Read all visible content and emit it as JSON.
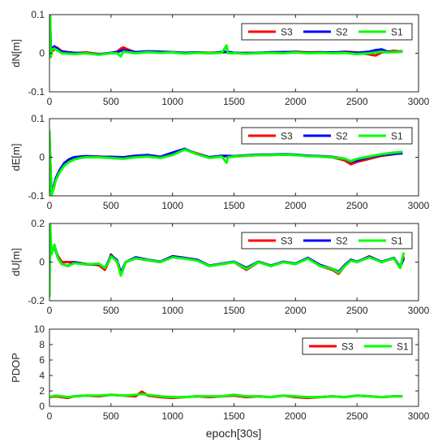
{
  "figure": {
    "xlabel": "epoch[30s]"
  },
  "colors": {
    "S3": "#ff0000",
    "S2": "#0000ff",
    "S1": "#00ff00"
  },
  "chart_data": [
    {
      "id": "dN",
      "type": "line",
      "ylabel": "dN[m]",
      "xlim": [
        0,
        3000
      ],
      "ylim": [
        -0.1,
        0.1
      ],
      "xticks": [
        0,
        500,
        1000,
        1500,
        2000,
        2500,
        3000
      ],
      "yticks": [
        -0.1,
        0,
        0.1
      ],
      "ytick_labels": [
        "-0.1",
        "0",
        "0.1"
      ],
      "legend_position": "top-right",
      "legend": [
        "S3",
        "S2",
        "S1"
      ],
      "series": [
        {
          "name": "S3",
          "color": "#ff0000",
          "x": [
            0,
            5,
            10,
            20,
            40,
            60,
            100,
            200,
            300,
            400,
            500,
            550,
            580,
            600,
            650,
            700,
            800,
            900,
            1000,
            1100,
            1200,
            1300,
            1400,
            1440,
            1500,
            1600,
            1700,
            1800,
            1900,
            2000,
            2100,
            2200,
            2300,
            2400,
            2500,
            2600,
            2650,
            2700,
            2750,
            2800,
            2870
          ],
          "y": [
            0.0,
            0.08,
            0.02,
            0.005,
            0.01,
            0.015,
            0.005,
            0.0,
            0.002,
            -0.002,
            0.0,
            0.004,
            0.012,
            0.015,
            0.008,
            0.002,
            0.004,
            0.003,
            0.002,
            0.0,
            0.002,
            0.001,
            0.002,
            0.003,
            0.0,
            0.001,
            0.0,
            0.003,
            0.002,
            0.004,
            0.002,
            0.003,
            0.001,
            0.004,
            0.002,
            -0.003,
            -0.006,
            0.002,
            0.004,
            0.006,
            0.004
          ]
        },
        {
          "name": "S2",
          "color": "#0000ff",
          "x": [
            0,
            5,
            10,
            20,
            40,
            60,
            100,
            200,
            300,
            400,
            500,
            550,
            580,
            600,
            650,
            700,
            800,
            900,
            1000,
            1100,
            1200,
            1300,
            1400,
            1440,
            1500,
            1600,
            1700,
            1800,
            1900,
            2000,
            2100,
            2200,
            2300,
            2400,
            2500,
            2600,
            2650,
            2700,
            2750,
            2800,
            2870
          ],
          "y": [
            0.0,
            0.085,
            0.022,
            0.008,
            0.018,
            0.012,
            0.004,
            0.001,
            0.0,
            -0.003,
            0.001,
            0.003,
            0.006,
            0.008,
            0.006,
            0.003,
            0.005,
            0.004,
            0.003,
            0.001,
            0.002,
            0.0,
            0.003,
            0.004,
            0.001,
            0.0,
            0.001,
            0.002,
            0.003,
            0.003,
            0.001,
            0.002,
            0.002,
            0.003,
            0.001,
            0.004,
            0.008,
            0.01,
            0.004,
            0.003,
            0.005
          ]
        },
        {
          "name": "S1",
          "color": "#00ff00",
          "x": [
            0,
            5,
            10,
            20,
            40,
            60,
            100,
            200,
            300,
            400,
            500,
            550,
            580,
            600,
            650,
            700,
            800,
            900,
            1000,
            1100,
            1200,
            1300,
            1400,
            1440,
            1450,
            1500,
            1600,
            1700,
            1800,
            1900,
            2000,
            2100,
            2200,
            2300,
            2400,
            2500,
            2600,
            2650,
            2700,
            2750,
            2800,
            2870
          ],
          "y": [
            0.0,
            0.1,
            -0.01,
            0.01,
            0.012,
            0.008,
            0.0,
            -0.002,
            0.0,
            -0.004,
            0.0,
            0.0,
            -0.008,
            0.004,
            0.002,
            0.0,
            0.003,
            0.001,
            0.002,
            -0.001,
            0.001,
            0.0,
            0.001,
            0.02,
            0.0,
            0.0,
            -0.001,
            0.0,
            0.001,
            0.0,
            0.002,
            0.0,
            0.001,
            0.0,
            0.001,
            -0.002,
            0.0,
            0.002,
            0.004,
            0.002,
            0.003,
            0.004
          ]
        }
      ]
    },
    {
      "id": "dE",
      "type": "line",
      "ylabel": "dE[m]",
      "xlim": [
        0,
        3000
      ],
      "ylim": [
        -0.1,
        0.1
      ],
      "xticks": [
        0,
        500,
        1000,
        1500,
        2000,
        2500,
        3000
      ],
      "yticks": [
        -0.1,
        0,
        0.1
      ],
      "ytick_labels": [
        "-0.1",
        "0",
        "0.1"
      ],
      "legend_position": "top-right",
      "legend": [
        "S3",
        "S2",
        "S1"
      ],
      "series": [
        {
          "name": "S3",
          "color": "#ff0000",
          "x": [
            0,
            5,
            15,
            30,
            50,
            80,
            120,
            160,
            200,
            250,
            300,
            400,
            500,
            600,
            700,
            800,
            900,
            1000,
            1100,
            1200,
            1300,
            1400,
            1500,
            1600,
            1700,
            1800,
            1900,
            2000,
            2100,
            2200,
            2300,
            2400,
            2450,
            2500,
            2600,
            2700,
            2800,
            2870
          ],
          "y": [
            0.05,
            0.0,
            -0.09,
            -0.085,
            -0.06,
            -0.04,
            -0.02,
            -0.01,
            -0.005,
            0.0,
            0.002,
            0.002,
            0.0,
            -0.002,
            0.003,
            0.005,
            0.0,
            0.01,
            0.02,
            0.01,
            0.0,
            0.003,
            0.002,
            0.004,
            0.006,
            0.006,
            0.007,
            0.006,
            0.004,
            0.002,
            0.0,
            -0.008,
            -0.018,
            -0.012,
            -0.004,
            0.004,
            0.008,
            0.012
          ]
        },
        {
          "name": "S2",
          "color": "#0000ff",
          "x": [
            0,
            5,
            15,
            30,
            50,
            80,
            120,
            160,
            200,
            250,
            300,
            400,
            500,
            600,
            700,
            800,
            900,
            1000,
            1100,
            1200,
            1300,
            1400,
            1500,
            1600,
            1700,
            1800,
            1900,
            2000,
            2100,
            2200,
            2300,
            2400,
            2450,
            2500,
            2600,
            2700,
            2800,
            2870
          ],
          "y": [
            0.05,
            0.0,
            -0.09,
            -0.08,
            -0.055,
            -0.035,
            -0.015,
            -0.005,
            0.0,
            0.002,
            0.003,
            0.001,
            0.001,
            0.0,
            0.004,
            0.006,
            0.001,
            0.012,
            0.022,
            0.008,
            0.0,
            0.004,
            0.003,
            0.005,
            0.007,
            0.007,
            0.008,
            0.007,
            0.004,
            0.003,
            0.001,
            -0.004,
            -0.012,
            -0.008,
            0.0,
            0.006,
            0.009,
            0.01
          ]
        },
        {
          "name": "S1",
          "color": "#00ff00",
          "x": [
            0,
            5,
            15,
            30,
            50,
            80,
            120,
            160,
            200,
            250,
            300,
            400,
            500,
            600,
            700,
            800,
            900,
            1000,
            1100,
            1200,
            1300,
            1400,
            1440,
            1450,
            1500,
            1600,
            1700,
            1800,
            1900,
            2000,
            2100,
            2200,
            2300,
            2400,
            2450,
            2500,
            2600,
            2700,
            2800,
            2870
          ],
          "y": [
            0.07,
            0.0,
            -0.1,
            -0.085,
            -0.06,
            -0.04,
            -0.022,
            -0.012,
            -0.006,
            -0.002,
            0.0,
            0.0,
            -0.002,
            -0.004,
            0.0,
            0.002,
            -0.002,
            0.006,
            0.02,
            0.008,
            -0.002,
            0.002,
            -0.014,
            0.0,
            0.002,
            0.004,
            0.006,
            0.006,
            0.007,
            0.006,
            0.003,
            0.002,
            0.0,
            -0.004,
            -0.01,
            -0.004,
            0.002,
            0.008,
            0.012,
            0.014
          ]
        }
      ]
    },
    {
      "id": "dU",
      "type": "line",
      "ylabel": "dU[m]",
      "xlim": [
        0,
        3000
      ],
      "ylim": [
        -0.2,
        0.2
      ],
      "xticks": [
        0,
        500,
        1000,
        1500,
        2000,
        2500,
        3000
      ],
      "yticks": [
        -0.2,
        0,
        0.2
      ],
      "ytick_labels": [
        "-0.2",
        "0",
        "0.2"
      ],
      "legend_position": "top-right",
      "legend": [
        "S3",
        "S2",
        "S1"
      ],
      "series": [
        {
          "name": "S3",
          "color": "#ff0000",
          "x": [
            0,
            5,
            15,
            40,
            70,
            100,
            150,
            200,
            300,
            400,
            450,
            480,
            500,
            550,
            580,
            620,
            700,
            800,
            900,
            1000,
            1100,
            1200,
            1300,
            1400,
            1500,
            1600,
            1700,
            1800,
            1900,
            2000,
            2100,
            2200,
            2300,
            2350,
            2400,
            2450,
            2500,
            2600,
            2700,
            2800,
            2850,
            2880
          ],
          "y": [
            0.0,
            0.08,
            0.05,
            0.08,
            0.03,
            0.0,
            0.0,
            0.0,
            -0.01,
            -0.015,
            -0.04,
            0.0,
            0.04,
            0.0,
            -0.06,
            0.0,
            0.02,
            0.01,
            0.0,
            0.03,
            0.02,
            0.01,
            -0.02,
            -0.01,
            0.0,
            -0.04,
            0.0,
            -0.02,
            0.0,
            -0.01,
            0.02,
            -0.02,
            -0.04,
            -0.06,
            -0.02,
            0.01,
            0.0,
            0.03,
            0.0,
            0.02,
            -0.03,
            0.03
          ]
        },
        {
          "name": "S2",
          "color": "#0000ff",
          "x": [
            0,
            5,
            15,
            40,
            70,
            100,
            150,
            200,
            300,
            400,
            450,
            480,
            500,
            550,
            580,
            620,
            700,
            800,
            900,
            1000,
            1100,
            1200,
            1300,
            1400,
            1500,
            1600,
            1700,
            1800,
            1900,
            2000,
            2100,
            2200,
            2300,
            2350,
            2400,
            2450,
            2500,
            2600,
            2700,
            2800,
            2850,
            2880
          ],
          "y": [
            0.0,
            0.085,
            0.055,
            0.08,
            0.02,
            -0.01,
            -0.02,
            0.0,
            -0.012,
            -0.01,
            -0.03,
            0.005,
            0.035,
            0.01,
            -0.055,
            0.0,
            0.025,
            0.012,
            0.002,
            0.03,
            0.022,
            0.012,
            -0.018,
            -0.008,
            0.002,
            -0.03,
            0.002,
            -0.018,
            0.002,
            -0.008,
            0.022,
            -0.015,
            -0.035,
            -0.05,
            -0.015,
            0.012,
            0.002,
            0.028,
            0.002,
            0.022,
            -0.025,
            0.02
          ]
        },
        {
          "name": "S1",
          "color": "#00ff00",
          "x": [
            0,
            5,
            15,
            40,
            70,
            100,
            150,
            200,
            300,
            400,
            450,
            480,
            500,
            550,
            580,
            620,
            700,
            800,
            900,
            1000,
            1100,
            1200,
            1300,
            1400,
            1500,
            1600,
            1700,
            1800,
            1900,
            2000,
            2100,
            2200,
            2300,
            2350,
            2400,
            2450,
            2500,
            2600,
            2700,
            2800,
            2850,
            2880
          ],
          "y": [
            -0.18,
            0.2,
            0.04,
            0.09,
            0.02,
            -0.01,
            -0.02,
            -0.005,
            -0.012,
            -0.008,
            -0.03,
            0.0,
            0.03,
            0.005,
            -0.07,
            0.0,
            0.02,
            0.01,
            0.0,
            0.025,
            0.018,
            0.008,
            -0.02,
            -0.01,
            0.0,
            -0.035,
            0.0,
            -0.02,
            0.0,
            -0.01,
            0.018,
            -0.02,
            -0.035,
            -0.055,
            -0.02,
            0.008,
            0.0,
            0.025,
            0.0,
            0.02,
            -0.03,
            0.05
          ]
        }
      ]
    },
    {
      "id": "PDOP",
      "type": "line",
      "ylabel": "PDOP",
      "xlabel": "epoch[30s]",
      "xlim": [
        0,
        3000
      ],
      "ylim": [
        0,
        10
      ],
      "xticks": [
        0,
        500,
        1000,
        1500,
        2000,
        2500,
        3000
      ],
      "yticks": [
        0,
        2,
        4,
        6,
        8,
        10
      ],
      "ytick_labels": [
        "0",
        "2",
        "4",
        "6",
        "8",
        "10"
      ],
      "legend_position": "top-right",
      "legend": [
        "S3",
        "S1"
      ],
      "series": [
        {
          "name": "S3",
          "color": "#ff0000",
          "x": [
            0,
            50,
            100,
            150,
            200,
            300,
            400,
            500,
            600,
            700,
            750,
            800,
            900,
            1000,
            1100,
            1200,
            1300,
            1400,
            1500,
            1600,
            1700,
            1800,
            1900,
            2000,
            2100,
            2200,
            2300,
            2400,
            2500,
            2600,
            2700,
            2800,
            2870
          ],
          "y": [
            1.2,
            1.3,
            1.2,
            1.1,
            1.3,
            1.4,
            1.3,
            1.5,
            1.4,
            1.3,
            1.9,
            1.4,
            1.2,
            1.1,
            1.2,
            1.3,
            1.2,
            1.3,
            1.4,
            1.2,
            1.3,
            1.2,
            1.4,
            1.2,
            1.1,
            1.2,
            1.3,
            1.2,
            1.4,
            1.3,
            1.2,
            1.3,
            1.3
          ]
        },
        {
          "name": "S1",
          "color": "#00ff00",
          "x": [
            0,
            50,
            100,
            150,
            200,
            300,
            400,
            500,
            600,
            700,
            750,
            800,
            900,
            1000,
            1100,
            1200,
            1300,
            1400,
            1500,
            1600,
            1700,
            1800,
            1900,
            2000,
            2100,
            2200,
            2300,
            2400,
            2500,
            2600,
            2700,
            2800,
            2870
          ],
          "y": [
            1.2,
            1.4,
            1.3,
            1.2,
            1.3,
            1.4,
            1.4,
            1.5,
            1.4,
            1.5,
            1.6,
            1.5,
            1.3,
            1.2,
            1.2,
            1.3,
            1.3,
            1.3,
            1.5,
            1.3,
            1.3,
            1.2,
            1.4,
            1.3,
            1.2,
            1.2,
            1.3,
            1.2,
            1.4,
            1.3,
            1.2,
            1.3,
            1.3
          ]
        }
      ]
    }
  ]
}
